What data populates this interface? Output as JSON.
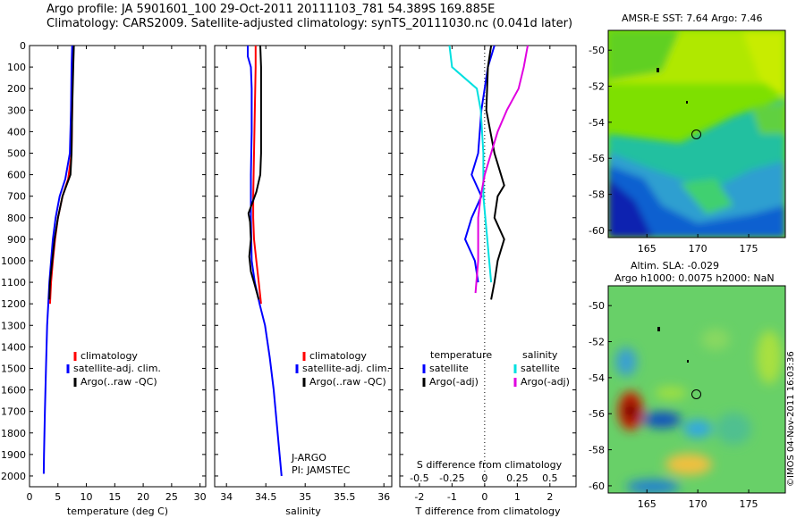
{
  "header": {
    "title_line1": "Argo profile: JA 5901601_100 29-Oct-2011 20111103_781 54.389S 169.885E",
    "title_line2": "Climatology: CARS2009. Satellite-adjusted climatology: synTS_20111030.nc (0.041d later)"
  },
  "maps": {
    "sst_title": "AMSR-E SST: 7.64 Argo: 7.46",
    "alt_title_line1": "Altim. SLA: -0.029",
    "alt_title_line2": "Argo h1000: 0.0075 h2000: NaN",
    "x_ticks": [
      "165",
      "170",
      "175"
    ],
    "y_ticks": [
      "-50",
      "-52",
      "-54",
      "-56",
      "-58",
      "-60"
    ],
    "stamp": "©IMOS 04-Nov-2011 16:03:36"
  },
  "chart_data": [
    {
      "type": "line",
      "name": "temperature-panel",
      "xlabel": "temperature (deg C)",
      "xlim": [
        0,
        31
      ],
      "ylim": [
        0,
        2050
      ],
      "y_reversed": true,
      "x_ticks": [
        "0",
        "5",
        "10",
        "15",
        "20",
        "25",
        "30"
      ],
      "y_ticks": [
        "0",
        "100",
        "200",
        "300",
        "400",
        "500",
        "600",
        "700",
        "800",
        "900",
        "1000",
        "1100",
        "1200",
        "1300",
        "1400",
        "1500",
        "1600",
        "1700",
        "1800",
        "1900",
        "2000"
      ],
      "legend": [
        "climatology",
        "satellite-adj. clim.",
        "Argo(..raw -QC)"
      ],
      "series": [
        {
          "name": "climatology",
          "color": "#ff0000",
          "points": [
            [
              7.7,
              0
            ],
            [
              7.6,
              100
            ],
            [
              7.5,
              300
            ],
            [
              7.4,
              500
            ],
            [
              6.8,
              620
            ],
            [
              5.8,
              700
            ],
            [
              5.0,
              800
            ],
            [
              4.5,
              900
            ],
            [
              4.1,
              1000
            ],
            [
              3.8,
              1100
            ],
            [
              3.6,
              1200
            ]
          ]
        },
        {
          "name": "satellite-adj. clim.",
          "color": "#0000ff",
          "points": [
            [
              7.5,
              0
            ],
            [
              7.4,
              100
            ],
            [
              7.3,
              300
            ],
            [
              7.1,
              500
            ],
            [
              6.3,
              620
            ],
            [
              5.3,
              700
            ],
            [
              4.6,
              800
            ],
            [
              4.1,
              900
            ],
            [
              3.8,
              1000
            ],
            [
              3.5,
              1100
            ],
            [
              3.3,
              1200
            ],
            [
              3.1,
              1300
            ],
            [
              2.9,
              1500
            ],
            [
              2.7,
              1700
            ],
            [
              2.55,
              1900
            ],
            [
              2.5,
              1990
            ]
          ]
        },
        {
          "name": "Argo(..raw -QC)",
          "color": "#000000",
          "points": [
            [
              7.8,
              0
            ],
            [
              7.7,
              100
            ],
            [
              7.5,
              300
            ],
            [
              7.4,
              500
            ],
            [
              7.2,
              600
            ],
            [
              6.5,
              650
            ],
            [
              5.8,
              700
            ],
            [
              5.0,
              800
            ],
            [
              4.4,
              900
            ],
            [
              4.0,
              1000
            ],
            [
              3.6,
              1100
            ],
            [
              3.5,
              1180
            ]
          ]
        }
      ]
    },
    {
      "type": "line",
      "name": "salinity-panel",
      "xlabel": "salinity",
      "xlim": [
        33.85,
        36.1
      ],
      "ylim": [
        0,
        2050
      ],
      "y_reversed": true,
      "x_ticks": [
        "34",
        "34.5",
        "35",
        "35.5",
        "36"
      ],
      "legend": [
        "climatology",
        "satellite-adj. clim.",
        "Argo(..raw -QC)"
      ],
      "annotation": [
        "J-ARGO",
        "PI: JAMSTEC"
      ],
      "series": [
        {
          "name": "climatology",
          "color": "#ff0000",
          "points": [
            [
              34.37,
              0
            ],
            [
              34.37,
              100
            ],
            [
              34.36,
              300
            ],
            [
              34.35,
              500
            ],
            [
              34.34,
              700
            ],
            [
              34.34,
              800
            ],
            [
              34.35,
              900
            ],
            [
              34.38,
              1000
            ],
            [
              34.41,
              1100
            ],
            [
              34.44,
              1200
            ]
          ]
        },
        {
          "name": "satellite-adj. clim.",
          "color": "#0000ff",
          "points": [
            [
              34.27,
              0
            ],
            [
              34.27,
              50
            ],
            [
              34.31,
              100
            ],
            [
              34.32,
              200
            ],
            [
              34.32,
              400
            ],
            [
              34.31,
              600
            ],
            [
              34.31,
              800
            ],
            [
              34.32,
              1000
            ],
            [
              34.36,
              1100
            ],
            [
              34.42,
              1200
            ],
            [
              34.49,
              1300
            ],
            [
              34.55,
              1450
            ],
            [
              34.6,
              1600
            ],
            [
              34.65,
              1800
            ],
            [
              34.7,
              2000
            ]
          ]
        },
        {
          "name": "Argo(..raw -QC)",
          "color": "#000000",
          "points": [
            [
              34.43,
              0
            ],
            [
              34.44,
              100
            ],
            [
              34.44,
              300
            ],
            [
              34.44,
              500
            ],
            [
              34.43,
              600
            ],
            [
              34.38,
              680
            ],
            [
              34.28,
              780
            ],
            [
              34.3,
              820
            ],
            [
              34.31,
              900
            ],
            [
              34.29,
              980
            ],
            [
              34.31,
              1050
            ],
            [
              34.35,
              1100
            ],
            [
              34.41,
              1180
            ]
          ]
        }
      ]
    },
    {
      "type": "line",
      "name": "difference-panel",
      "xlabel": "T difference from climatology",
      "xlabel2": "S difference from climatology",
      "xlim": [
        -2.6,
        2.8
      ],
      "ylim": [
        0,
        2050
      ],
      "y_reversed": true,
      "x_ticks": [
        "-2",
        "-1",
        "0",
        "1",
        "2"
      ],
      "x_ticks_top": [
        "-0.5",
        "-0.25",
        "0",
        "0.25",
        "0.5"
      ],
      "legend": {
        "temperature": [
          "satellite",
          "Argo(-adj)"
        ],
        "salinity": [
          "satellite",
          "Argo(-adj)"
        ]
      },
      "legend_headers": [
        "temperature",
        "salinity"
      ],
      "series": [
        {
          "name": "temperature satellite",
          "color": "#0000ff",
          "points": [
            [
              0.3,
              0
            ],
            [
              0.1,
              100
            ],
            [
              -0.1,
              300
            ],
            [
              -0.2,
              500
            ],
            [
              -0.4,
              600
            ],
            [
              -0.1,
              700
            ],
            [
              -0.4,
              800
            ],
            [
              -0.6,
              900
            ],
            [
              -0.3,
              1000
            ],
            [
              -0.2,
              1100
            ]
          ]
        },
        {
          "name": "temperature Argo(-adj)",
          "color": "#000000",
          "points": [
            [
              0.2,
              0
            ],
            [
              0.1,
              100
            ],
            [
              0.05,
              300
            ],
            [
              0.3,
              500
            ],
            [
              0.5,
              600
            ],
            [
              0.6,
              650
            ],
            [
              0.4,
              700
            ],
            [
              0.3,
              800
            ],
            [
              0.6,
              900
            ],
            [
              0.4,
              1000
            ],
            [
              0.3,
              1100
            ],
            [
              0.2,
              1180
            ]
          ]
        },
        {
          "name": "salinity satellite",
          "color": "#00e0e0",
          "points": [
            [
              -0.27,
              0
            ],
            [
              -0.25,
              100
            ],
            [
              -0.06,
              200
            ],
            [
              -0.03,
              300
            ],
            [
              -0.01,
              500
            ],
            [
              -0.01,
              700
            ],
            [
              0.02,
              900
            ],
            [
              0.05,
              1100
            ]
          ]
        },
        {
          "name": "salinity Argo(-adj)",
          "color": "#e000e0",
          "points": [
            [
              0.33,
              0
            ],
            [
              0.3,
              100
            ],
            [
              0.26,
              200
            ],
            [
              0.17,
              300
            ],
            [
              0.1,
              400
            ],
            [
              0.05,
              500
            ],
            [
              0.0,
              600
            ],
            [
              -0.03,
              700
            ],
            [
              -0.05,
              800
            ],
            [
              -0.05,
              1000
            ],
            [
              -0.07,
              1150
            ]
          ]
        }
      ]
    }
  ]
}
